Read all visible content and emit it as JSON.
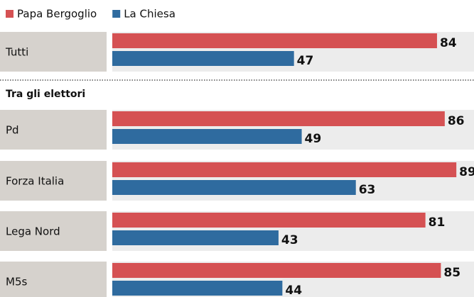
{
  "chart_data": {
    "type": "bar",
    "orientation": "horizontal",
    "section_label": "Tra gli elettori",
    "categories": [
      "Tutti",
      "Pd",
      "Forza Italia",
      "Lega Nord",
      "M5s"
    ],
    "series": [
      {
        "name": "Papa Bergoglio",
        "color": "#d55153",
        "values": [
          84,
          86,
          89,
          81,
          85
        ]
      },
      {
        "name": "La Chiesa",
        "color": "#2f6b9f",
        "values": [
          47,
          49,
          63,
          43,
          44
        ]
      }
    ]
  }
}
